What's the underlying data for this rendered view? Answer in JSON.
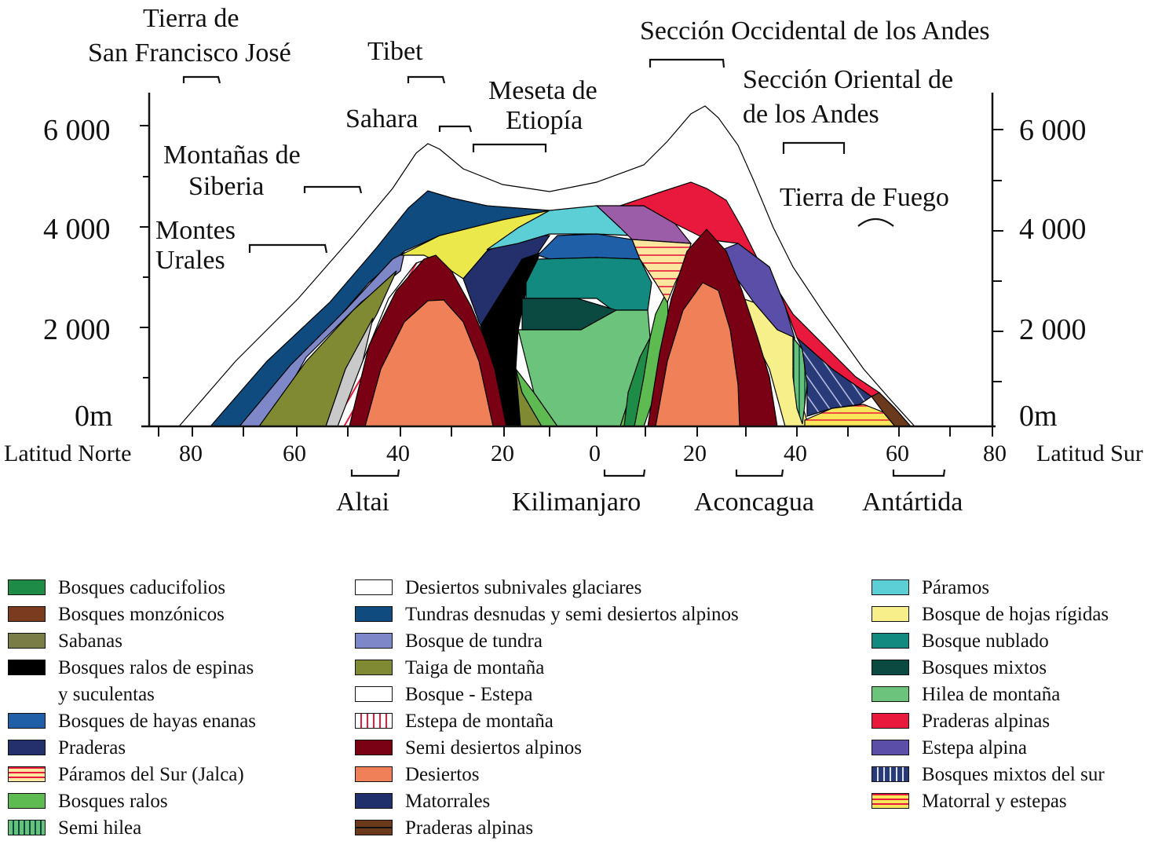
{
  "axes": {
    "left_label": "Latitud Norte",
    "right_label": "Latitud Sur",
    "x_ticks": [
      "80",
      "60",
      "40",
      "20",
      "0",
      "20",
      "40",
      "60",
      "80"
    ],
    "y_ticks": [
      "6 000",
      "4 000",
      "2 000",
      "0m"
    ]
  },
  "labels": {
    "tierra_sfj_1": "Tierra de",
    "tierra_sfj_2": "San Francisco José",
    "tibet": "Tibet",
    "seccion_occ": "Sección Occidental de los Andes",
    "seccion_ori_1": "Sección Oriental de",
    "seccion_ori_2": "de los Andes",
    "sahara": "Sahara",
    "meseta_1": "Meseta de",
    "meseta_2": "Etiopía",
    "siberia_1": "Montañas de",
    "siberia_2": "Siberia",
    "tierra_fuego": "Tierra de Fuego",
    "urales_1": "Montes",
    "urales_2": "Urales",
    "altai": "Altai",
    "kilimanjaro": "Kilimanjaro",
    "aconcagua": "Aconcagua",
    "antartida": "Antártida"
  },
  "colors": {
    "caducifolios": "#1e8c46",
    "monzonicos": "#7b3b1e",
    "sabanas": "#7a7d45",
    "ralos_espinas": "#000000",
    "hayas": "#1f5fa8",
    "praderas": "#24306b",
    "jalca": "#fbe6a0",
    "ralos": "#5dbb52",
    "semi_hilea": "#66c27a",
    "subnivales": "#ffffff",
    "tundras": "#0f4b7e",
    "bosque_tundra": "#7e88c8",
    "taiga": "#7f8a32",
    "estepa": "#ffffff",
    "estepa_montana": "#ffffff",
    "semi_desiertos": "#7a0013",
    "desiertos": "#f08058",
    "matorrales": "#20306c",
    "praderas_alp_brown": "#6b3a1c",
    "paramos": "#5ccfd6",
    "hojas_rigidas": "#f6ef8a",
    "nublado": "#138a80",
    "mixtos": "#0a4a40",
    "hilea": "#6cc47c",
    "praderas_alpinas": "#e8193c",
    "estepa_alpina": "#5b4ea8",
    "mixtos_sur": "#283a78",
    "matorral_estepas": "#f7e65a",
    "yellow": "#ebe84c",
    "violet": "#9b5ca8",
    "blue_mid": "#2e4e9e"
  },
  "legend": {
    "col1": [
      {
        "label": "Bosques caducifolios",
        "color": "#1e8c46"
      },
      {
        "label": "Bosques monzónicos",
        "color": "#7b3b1e"
      },
      {
        "label": "Sabanas",
        "color": "#7a7d45"
      },
      {
        "label": "Bosques ralos de espinas",
        "color": "#000000"
      },
      {
        "label": "y suculentas",
        "color": ""
      },
      {
        "label": "Bosques de hayas enanas",
        "color": "#1f5fa8"
      },
      {
        "label": "Praderas",
        "color": "#24306b"
      },
      {
        "label": "Páramos del Sur (Jalca)",
        "color": "#fbe6a0",
        "pattern": "hstripe-red"
      },
      {
        "label": "Bosques ralos",
        "color": "#5dbb52"
      },
      {
        "label": "Semi hilea",
        "color": "#66c27a",
        "pattern": "vstripe-dark"
      }
    ],
    "col2": [
      {
        "label": "Desiertos subnivales glaciares",
        "color": "#ffffff"
      },
      {
        "label": "Tundras desnudas y semi desiertos alpinos",
        "color": "#0f4b7e"
      },
      {
        "label": "Bosque de tundra",
        "color": "#7e88c8"
      },
      {
        "label": "Taiga de montaña",
        "color": "#7f8a32"
      },
      {
        "label": "Bosque - Estepa",
        "color": "#ffffff"
      },
      {
        "label": "Estepa de montaña",
        "color": "#ffffff",
        "pattern": "vstripe-red"
      },
      {
        "label": "Semi desiertos alpinos",
        "color": "#7a0013"
      },
      {
        "label": "Desiertos",
        "color": "#f08058"
      },
      {
        "label": "Matorrales",
        "color": "#20306c"
      },
      {
        "label": "Praderas alpinas",
        "color": "#6b3a1c",
        "pattern": "dash-dark"
      }
    ],
    "col3": [
      {
        "label": "Páramos",
        "color": "#5ccfd6"
      },
      {
        "label": "Bosque de hojas rígidas",
        "color": "#f6ef8a"
      },
      {
        "label": "Bosque nublado",
        "color": "#138a80"
      },
      {
        "label": "Bosques mixtos",
        "color": "#0a4a40"
      },
      {
        "label": "Hilea de montaña",
        "color": "#6cc47c"
      },
      {
        "label": "Praderas alpinas",
        "color": "#e8193c"
      },
      {
        "label": "Estepa alpina",
        "color": "#5b4ea8"
      },
      {
        "label": "Bosques mixtos del sur",
        "color": "#283a78",
        "pattern": "vstripe-white"
      },
      {
        "label": "Matorral y estepas",
        "color": "#f7e65a",
        "pattern": "hstripe-red"
      }
    ]
  }
}
